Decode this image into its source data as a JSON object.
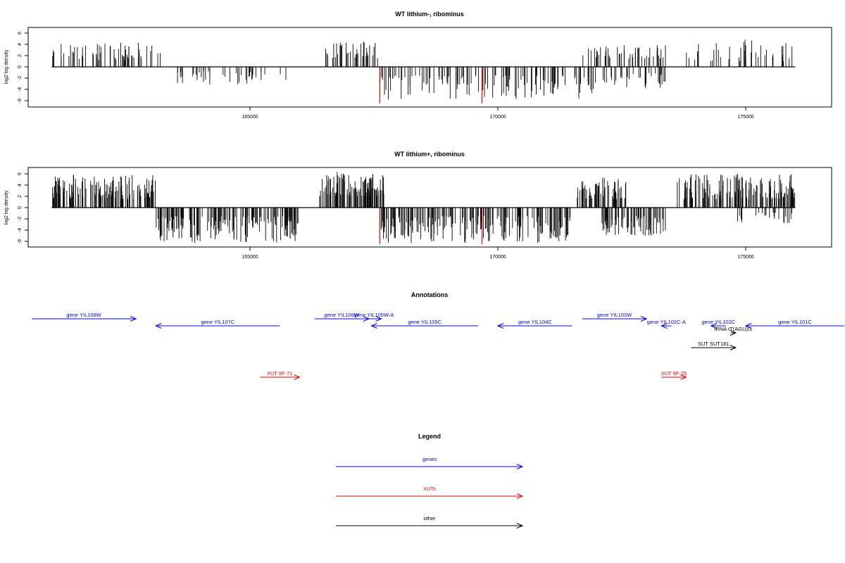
{
  "chart_data": [
    {
      "type": "bar",
      "title": "WT lithium-, ribominus",
      "ylabel": "log2 log density",
      "xlim": [
        160000,
        177000
      ],
      "ylim": [
        -7,
        7
      ],
      "x_ticks": [
        "165000",
        "170000",
        "175000"
      ],
      "y_ticks": [
        "6",
        "4",
        "2",
        "0",
        "-2",
        "-4",
        "-6"
      ],
      "x_tick_values": [
        165000,
        170000,
        175000
      ],
      "y_tick_values": [
        6,
        4,
        2,
        0,
        -2,
        -4,
        -6
      ],
      "baseline_range": [
        161000,
        176000
      ],
      "segments": [
        {
          "start": 161000,
          "end": 163200,
          "sign": 1,
          "min": 1.2,
          "max": 4.3,
          "count": 60
        },
        {
          "start": 163300,
          "end": 165800,
          "sign": -1,
          "min": 0.8,
          "max": 3.2,
          "count": 40
        },
        {
          "start": 166500,
          "end": 167600,
          "sign": 1,
          "min": 1.5,
          "max": 4.5,
          "count": 35
        },
        {
          "start": 167600,
          "end": 172000,
          "sign": -1,
          "min": 1.5,
          "max": 5.8,
          "count": 120
        },
        {
          "start": 171700,
          "end": 173400,
          "sign": 1,
          "min": 1.5,
          "max": 3.9,
          "count": 45
        },
        {
          "start": 172000,
          "end": 173400,
          "sign": -1,
          "min": 1.0,
          "max": 4.0,
          "count": 30
        },
        {
          "start": 173800,
          "end": 176000,
          "sign": 1,
          "min": 1.0,
          "max": 5.0,
          "count": 40
        }
      ],
      "highlights": [
        {
          "x": 167620,
          "y": -6.5
        },
        {
          "x": 169680,
          "y": -6.5
        }
      ]
    },
    {
      "type": "bar",
      "title": "WT lithium+, ribominus",
      "ylabel": "log2 log density",
      "xlim": [
        160000,
        177000
      ],
      "ylim": [
        -7,
        7
      ],
      "x_ticks": [
        "165000",
        "170000",
        "175000"
      ],
      "y_ticks": [
        "6",
        "4",
        "2",
        "0",
        "-2",
        "-4",
        "-6"
      ],
      "x_tick_values": [
        165000,
        170000,
        175000
      ],
      "y_tick_values": [
        6,
        4,
        2,
        0,
        -2,
        -4,
        -6
      ],
      "baseline_range": [
        161000,
        176000
      ],
      "segments": [
        {
          "start": 161000,
          "end": 163100,
          "sign": 1,
          "min": 1.5,
          "max": 6.0,
          "count": 140
        },
        {
          "start": 163100,
          "end": 166000,
          "sign": -1,
          "min": 1.5,
          "max": 6.3,
          "count": 170
        },
        {
          "start": 166400,
          "end": 167700,
          "sign": 1,
          "min": 2.0,
          "max": 6.5,
          "count": 110
        },
        {
          "start": 167600,
          "end": 171500,
          "sign": -1,
          "min": 1.5,
          "max": 6.3,
          "count": 190
        },
        {
          "start": 171600,
          "end": 172600,
          "sign": 1,
          "min": 1.5,
          "max": 5.3,
          "count": 60
        },
        {
          "start": 172100,
          "end": 173400,
          "sign": -1,
          "min": 1.5,
          "max": 5.0,
          "count": 70
        },
        {
          "start": 173600,
          "end": 176000,
          "sign": 1,
          "min": 1.5,
          "max": 6.0,
          "count": 140
        },
        {
          "start": 174800,
          "end": 176000,
          "sign": -1,
          "min": 0.8,
          "max": 3.0,
          "count": 25
        }
      ],
      "highlights": [
        {
          "x": 167620,
          "y": -6.5
        },
        {
          "x": 169680,
          "y": -6.5
        }
      ]
    }
  ],
  "annotations": {
    "title": "Annotations",
    "items": [
      {
        "label": "gene YIL108W",
        "start": 160600,
        "end": 162700,
        "dir": "right",
        "row": 0,
        "kind": "gene"
      },
      {
        "label": "gene YIL107C",
        "start": 163100,
        "end": 165600,
        "dir": "left",
        "row": 1,
        "kind": "gene"
      },
      {
        "label": "gene YIL106W",
        "start": 166300,
        "end": 167400,
        "dir": "right",
        "row": 0,
        "kind": "gene"
      },
      {
        "label": "gene YIL105W-A",
        "start": 167350,
        "end": 167650,
        "dir": "right",
        "row": 0,
        "kind": "gene"
      },
      {
        "label": "gene YIL105C",
        "start": 167450,
        "end": 169600,
        "dir": "left",
        "row": 1,
        "kind": "gene"
      },
      {
        "label": "gene YIL104C",
        "start": 170000,
        "end": 171500,
        "dir": "left",
        "row": 1,
        "kind": "gene"
      },
      {
        "label": "gene YIL103W",
        "start": 171700,
        "end": 173000,
        "dir": "right",
        "row": 0,
        "kind": "gene"
      },
      {
        "label": "gene YIL102C-A",
        "start": 173300,
        "end": 173500,
        "dir": "left",
        "row": 1,
        "kind": "gene"
      },
      {
        "label": "gene YIL102C",
        "start": 174300,
        "end": 174600,
        "dir": "left",
        "row": 1,
        "kind": "gene"
      },
      {
        "label": "gene YIL101C",
        "start": 175000,
        "end": 177000,
        "dir": "left",
        "row": 1,
        "kind": "gene"
      },
      {
        "label": "tRNA tT(AGU)I1",
        "start": 174700,
        "end": 174800,
        "dir": "right",
        "row": 2,
        "kind": "other"
      },
      {
        "label": "SUT SUT181",
        "start": 173900,
        "end": 174800,
        "dir": "right",
        "row": 3,
        "kind": "other"
      },
      {
        "label": "XUT 9F-71",
        "start": 165200,
        "end": 166000,
        "dir": "right",
        "row": 5,
        "kind": "xut"
      },
      {
        "label": "XUT 9F-25",
        "start": 173300,
        "end": 173800,
        "dir": "right",
        "row": 5,
        "kind": "xut"
      }
    ]
  },
  "legend": {
    "title": "Legend",
    "items": [
      {
        "label": "genes",
        "color": "#0000ff"
      },
      {
        "label": "XUTs",
        "color": "#ff0000"
      },
      {
        "label": "other",
        "color": "#000000"
      }
    ]
  },
  "colors": {
    "gene": "#0000ff",
    "xut": "#ff0000",
    "other": "#000000",
    "highlight": "#ff0000"
  }
}
